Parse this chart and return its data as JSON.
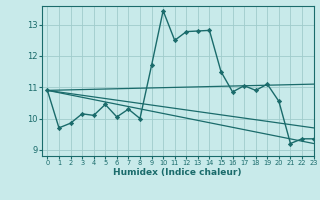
{
  "bg_color": "#c8eaea",
  "line_color": "#1a6b6b",
  "grid_color": "#a0cccc",
  "xlabel": "Humidex (Indice chaleur)",
  "xlim": [
    -0.5,
    23
  ],
  "ylim": [
    8.8,
    13.6
  ],
  "xticks": [
    0,
    1,
    2,
    3,
    4,
    5,
    6,
    7,
    8,
    9,
    10,
    11,
    12,
    13,
    14,
    15,
    16,
    17,
    18,
    19,
    20,
    21,
    22,
    23
  ],
  "yticks": [
    9,
    10,
    11,
    12,
    13
  ],
  "curve1_x": [
    0,
    1,
    2,
    3,
    4,
    5,
    6,
    7,
    8,
    9,
    10,
    11,
    12,
    13,
    14,
    15,
    16,
    17,
    18,
    19,
    20,
    21,
    22,
    23
  ],
  "curve1_y": [
    10.9,
    9.7,
    9.85,
    10.15,
    10.1,
    10.45,
    10.05,
    10.3,
    10.0,
    11.7,
    13.45,
    12.5,
    12.78,
    12.8,
    12.82,
    11.5,
    10.85,
    11.05,
    10.9,
    11.1,
    10.55,
    9.2,
    9.35,
    9.35
  ],
  "line1_x": [
    0,
    23
  ],
  "line1_y": [
    10.9,
    9.2
  ],
  "line2_x": [
    0,
    23
  ],
  "line2_y": [
    10.9,
    9.7
  ],
  "line3_x": [
    0,
    23
  ],
  "line3_y": [
    10.9,
    11.1
  ]
}
